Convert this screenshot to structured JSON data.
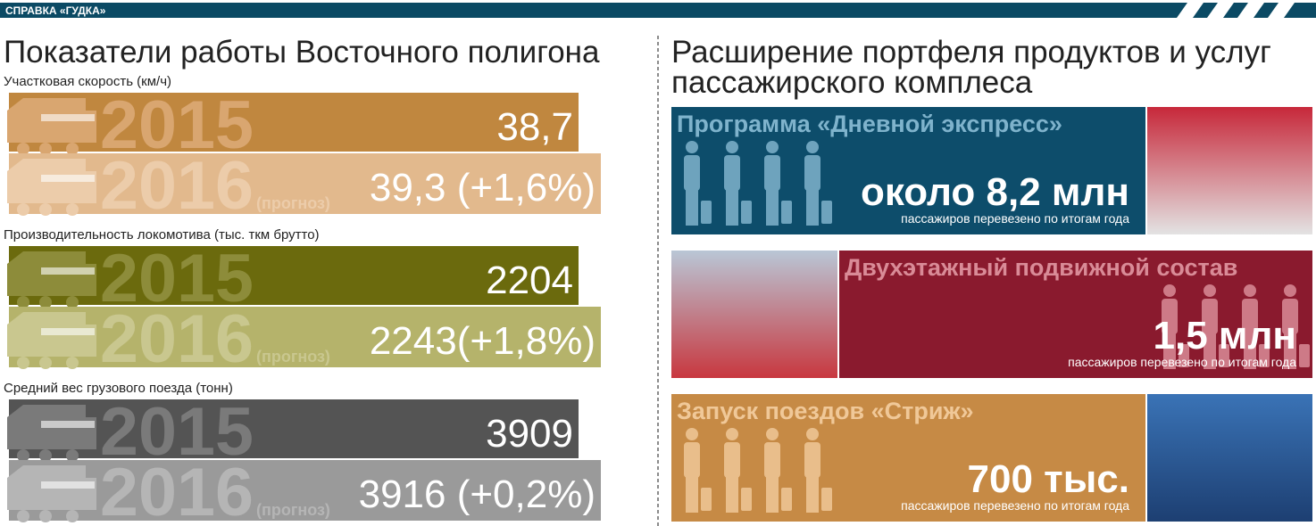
{
  "header": {
    "tag": "СПРАВКА «ГУДКА»"
  },
  "left": {
    "title": "Показатели работы Восточного полигона",
    "groups": [
      {
        "label": "Участковая скорость (км/ч)",
        "rows": [
          {
            "year": "2015",
            "value": "38,7"
          },
          {
            "year": "2016",
            "note": "(прогноз)",
            "value": "39,3 (+1,6%)"
          }
        ]
      },
      {
        "label": "Производительность локомотива (тыс. ткм брутто)",
        "rows": [
          {
            "year": "2015",
            "value": "2204"
          },
          {
            "year": "2016",
            "note": "(прогноз)",
            "value": "2243(+1,8%)"
          }
        ]
      },
      {
        "label": "Средний вес грузового поезда (тонн)",
        "rows": [
          {
            "year": "2015",
            "value": "3909"
          },
          {
            "year": "2016",
            "note": "(прогноз)",
            "value": "3916 (+0,2%)"
          }
        ]
      }
    ]
  },
  "right": {
    "title": [
      "Расширение портфеля продуктов и услуг",
      "пассажирского комплеса"
    ],
    "cards": [
      {
        "title": "Программа «Дневной экспресс»",
        "figure": "около 8,2 млн",
        "caption": "пассажиров перевезено по итогам года"
      },
      {
        "title": "Двухэтажный подвижной состав",
        "figure": "1,5 млн",
        "caption": "пассажиров перевезено по итогам года"
      },
      {
        "title": "Запуск поездов «Стриж»",
        "figure": "700 тыс.",
        "caption": "пассажиров перевезено по итогам года"
      }
    ]
  }
}
